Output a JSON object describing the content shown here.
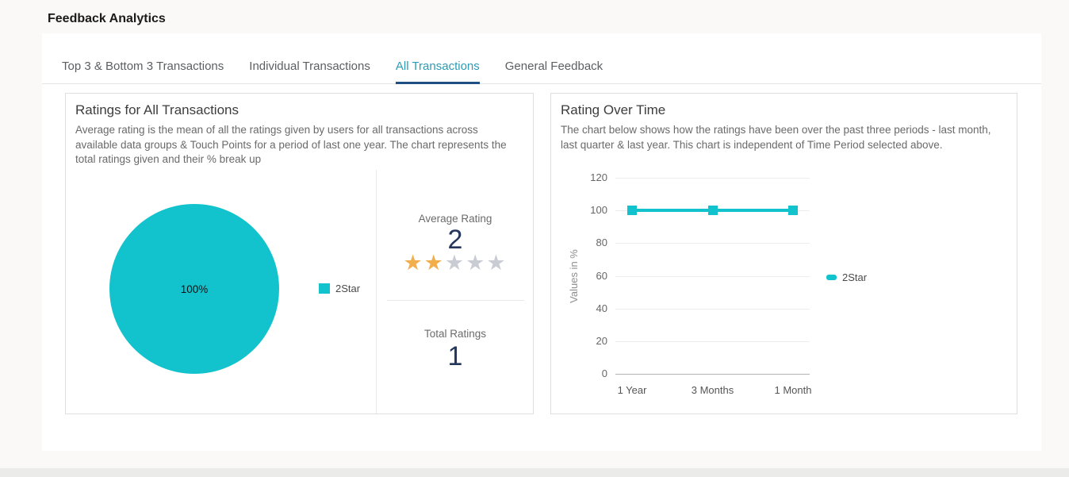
{
  "page": {
    "title": "Feedback Analytics"
  },
  "tabs": [
    {
      "label": "Top 3 & Bottom 3 Transactions",
      "active": false
    },
    {
      "label": "Individual Transactions",
      "active": false
    },
    {
      "label": "All Transactions",
      "active": true
    },
    {
      "label": "General Feedback",
      "active": false
    }
  ],
  "colors": {
    "accent_teal": "#12c3cd",
    "active_tab_text": "#2d9bb5",
    "active_tab_underline": "#1f4e82",
    "star_filled": "#f2ae4b",
    "star_empty": "#c9cdd3",
    "big_number": "#24365c"
  },
  "left_card": {
    "title": "Ratings for All Transactions",
    "description": "Average rating is the mean of all the ratings given by users for all transactions across available data groups & Touch Points for a period of last one year. The chart represents the total ratings given and their % break up",
    "average_rating": {
      "label": "Average Rating",
      "value": "2",
      "stars_filled": 2,
      "stars_total": 5
    },
    "total_ratings": {
      "label": "Total Ratings",
      "value": "1"
    }
  },
  "right_card": {
    "title": "Rating Over Time",
    "description": "The chart below shows how the ratings have been over the past three periods - last month, last quarter & last year. This chart is independent of Time Period selected above."
  },
  "chart_data": [
    {
      "type": "pie",
      "title": "Ratings for All Transactions",
      "slices": [
        {
          "label": "2Star",
          "value": 100,
          "color": "#12c3cd"
        }
      ],
      "data_label": "100%",
      "legend_position": "right"
    },
    {
      "type": "line",
      "title": "Rating Over Time",
      "categories": [
        "1 Year",
        "3 Months",
        "1 Month"
      ],
      "series": [
        {
          "name": "2Star",
          "values": [
            100,
            100,
            100
          ],
          "color": "#12c3cd"
        }
      ],
      "ylabel": "Values in %",
      "ylim": [
        0,
        120
      ],
      "yticks": [
        0,
        20,
        40,
        60,
        80,
        100,
        120
      ],
      "grid": true,
      "marker": "square",
      "legend_position": "right"
    }
  ]
}
